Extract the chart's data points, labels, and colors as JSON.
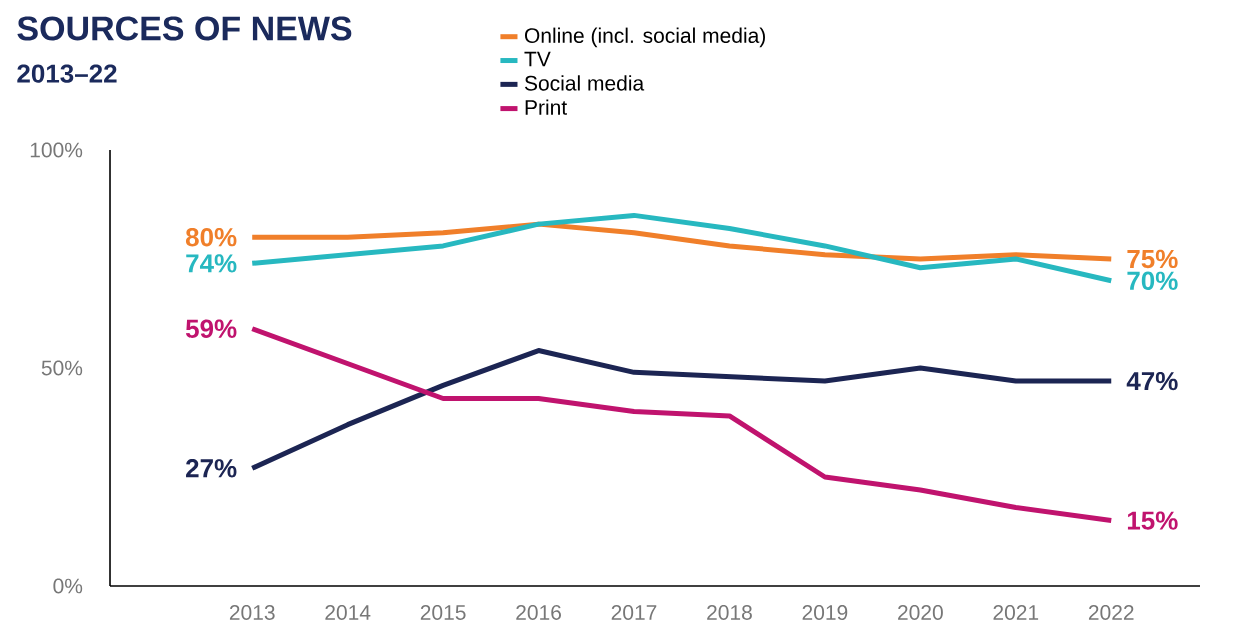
{
  "chart_data": {
    "type": "line",
    "title": "SOURCES OF NEWS",
    "subtitle": "2013–22",
    "categories": [
      "2013",
      "2014",
      "2015",
      "2016",
      "2017",
      "2018",
      "2019",
      "2020",
      "2021",
      "2022"
    ],
    "series": [
      {
        "name": "Online (incl. social media)",
        "color": "#f07f2a",
        "values": [
          80,
          80,
          81,
          83,
          81,
          78,
          76,
          75,
          76,
          75
        ],
        "value_labels": [
          "80%",
          null,
          null,
          null,
          null,
          null,
          null,
          null,
          null,
          "75%"
        ]
      },
      {
        "name": "TV",
        "color": "#27b8c0",
        "values": [
          74,
          76,
          78,
          83,
          85,
          82,
          78,
          73,
          75,
          70
        ],
        "value_labels": [
          "74%",
          null,
          null,
          null,
          null,
          null,
          null,
          null,
          null,
          "70%"
        ]
      },
      {
        "name": "Social media",
        "color": "#1c2553",
        "values": [
          27,
          37,
          46,
          54,
          49,
          48,
          47,
          50,
          47,
          47
        ],
        "value_labels": [
          "27%",
          null,
          null,
          null,
          null,
          null,
          null,
          null,
          null,
          "47%"
        ]
      },
      {
        "name": "Print",
        "color": "#c0136e",
        "values": [
          59,
          51,
          43,
          43,
          40,
          39,
          25,
          22,
          18,
          15
        ],
        "value_labels": [
          "59%",
          null,
          null,
          null,
          null,
          null,
          null,
          null,
          null,
          "15%"
        ]
      }
    ],
    "ylim": [
      0,
      100
    ],
    "yticks": [
      {
        "value": 0,
        "label": "0%"
      },
      {
        "value": 50,
        "label": "50%"
      },
      {
        "value": 100,
        "label": "100%"
      }
    ],
    "legend": "top",
    "grid": false,
    "marker": "none",
    "line_style": "solid"
  }
}
